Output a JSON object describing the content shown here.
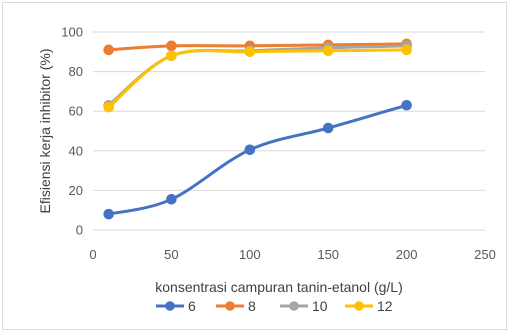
{
  "chart_data": {
    "type": "line",
    "title": "",
    "xlabel": "konsentrasi campuran tanin-etanol (g/L)",
    "ylabel": "Efisiensi kerja inhibitor (%)",
    "xlim": [
      0,
      250
    ],
    "ylim": [
      0,
      100
    ],
    "x_ticks": [
      "0",
      "50",
      "100",
      "150",
      "200",
      "250"
    ],
    "y_ticks": [
      "0",
      "20",
      "40",
      "60",
      "80",
      "100"
    ],
    "grid": "horizontal",
    "legend_position": "bottom",
    "smooth": true,
    "series": [
      {
        "name": "6",
        "color": "#4472C4",
        "x": [
          10,
          50,
          100,
          150,
          200
        ],
        "y": [
          8,
          15.5,
          40.5,
          51.5,
          63
        ]
      },
      {
        "name": "8",
        "color": "#ED7D31",
        "x": [
          10,
          50,
          100,
          150,
          200
        ],
        "y": [
          91,
          93,
          93,
          93.5,
          94
        ]
      },
      {
        "name": "10",
        "color": "#A5A5A5",
        "x": [
          10,
          50,
          100,
          150,
          200
        ],
        "y": [
          63,
          88,
          90.5,
          92,
          93
        ]
      },
      {
        "name": "12",
        "color": "#FFC000",
        "x": [
          10,
          50,
          100,
          150,
          200
        ],
        "y": [
          62,
          88,
          90,
          90.5,
          91
        ]
      }
    ]
  }
}
